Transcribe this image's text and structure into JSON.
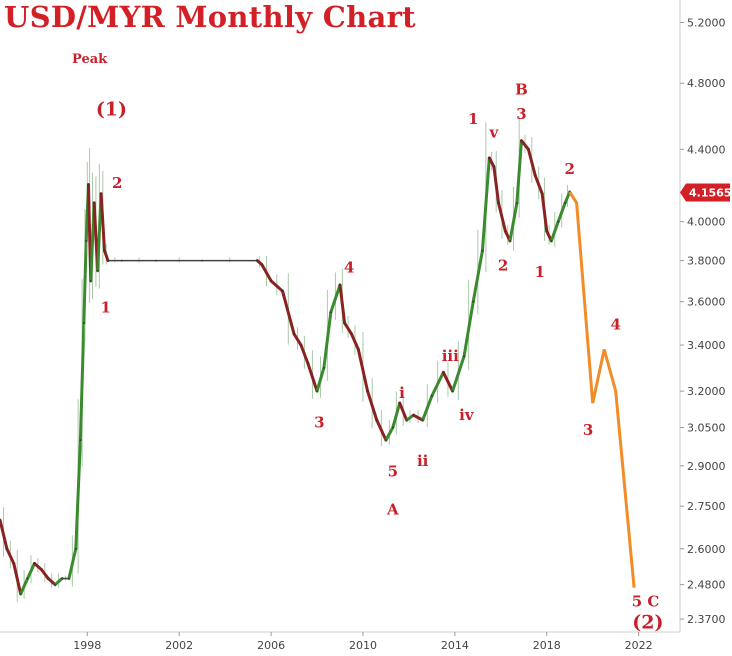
{
  "chart_data": {
    "type": "line",
    "title": "USD/MYR Monthly Chart",
    "y_scale": "log",
    "ylim": [
      2.33,
      5.3
    ],
    "xlim": [
      1994.2,
      2023.8
    ],
    "x_ticks": [
      1998,
      2002,
      2006,
      2010,
      2014,
      2018,
      2022
    ],
    "y_ticks": [
      5.2,
      4.8,
      4.4,
      4.0,
      3.8,
      3.6,
      3.4,
      3.2,
      3.05,
      2.9,
      2.75,
      2.6,
      2.48,
      2.37
    ],
    "y_tick_labels": [
      "5.2000",
      "4.8000",
      "4.4000",
      "4.0000",
      "3.8000",
      "3.6000",
      "3.4000",
      "3.2000",
      "3.0500",
      "2.9000",
      "2.7500",
      "2.6000",
      "2.4800",
      "2.3700"
    ],
    "last_price": 4.1565,
    "last_price_label": "4.1565",
    "series": [
      {
        "kind": "price",
        "x": [
          1994.2,
          1994.5,
          1994.8,
          1995.1,
          1995.4,
          1995.7,
          1996.0,
          1996.3,
          1996.6,
          1996.9,
          1997.2,
          1997.5,
          1997.7,
          1997.85,
          1997.95,
          1998.05,
          1998.15,
          1998.3,
          1998.45,
          1998.6,
          1998.75,
          1998.9,
          1999.5,
          2001,
          2003,
          2005.4,
          2005.6,
          2006.0,
          2006.5,
          2007.0,
          2007.3,
          2007.6,
          2008.0,
          2008.3,
          2008.6,
          2009.0,
          2009.2,
          2009.5,
          2009.8,
          2010.2,
          2010.6,
          2011.0,
          2011.3,
          2011.6,
          2011.9,
          2012.2,
          2012.6,
          2013.0,
          2013.5,
          2013.9,
          2014.4,
          2014.8,
          2015.2,
          2015.5,
          2015.7,
          2015.9,
          2016.2,
          2016.4,
          2016.7,
          2016.9,
          2017.2,
          2017.5,
          2017.8,
          2018.0,
          2018.2,
          2018.5,
          2018.8,
          2019.0
        ],
        "y": [
          2.7,
          2.6,
          2.55,
          2.45,
          2.5,
          2.55,
          2.53,
          2.5,
          2.48,
          2.5,
          2.5,
          2.6,
          3.0,
          3.5,
          3.9,
          4.2,
          3.7,
          4.1,
          3.75,
          4.15,
          3.85,
          3.8,
          3.8,
          3.8,
          3.8,
          3.8,
          3.78,
          3.7,
          3.65,
          3.45,
          3.4,
          3.32,
          3.2,
          3.3,
          3.55,
          3.68,
          3.5,
          3.45,
          3.38,
          3.2,
          3.08,
          3.0,
          3.05,
          3.15,
          3.08,
          3.1,
          3.08,
          3.18,
          3.28,
          3.2,
          3.35,
          3.6,
          3.85,
          4.35,
          4.3,
          4.1,
          3.95,
          3.9,
          4.1,
          4.45,
          4.4,
          4.25,
          4.15,
          3.95,
          3.9,
          4.0,
          4.1,
          4.16
        ]
      },
      {
        "kind": "projection",
        "x": [
          2019.0,
          2019.3,
          2020.0,
          2020.5,
          2021.0,
          2021.8
        ],
        "y": [
          4.16,
          4.1,
          3.15,
          3.38,
          3.2,
          2.47
        ]
      }
    ],
    "annotations": [
      {
        "text": "Peak",
        "x": 1998.1,
        "y": 4.93,
        "size": "small"
      },
      {
        "text": "(1)",
        "x": 1999.05,
        "y": 4.6,
        "size": "big"
      },
      {
        "text": "2",
        "x": 1999.3,
        "y": 4.18,
        "size": "normal"
      },
      {
        "text": "1",
        "x": 1998.8,
        "y": 3.55,
        "size": "normal"
      },
      {
        "text": "4",
        "x": 2009.4,
        "y": 3.74,
        "size": "normal"
      },
      {
        "text": "3",
        "x": 2008.1,
        "y": 3.05,
        "size": "normal"
      },
      {
        "text": "i",
        "x": 2011.7,
        "y": 3.17,
        "size": "normal"
      },
      {
        "text": "5",
        "x": 2011.3,
        "y": 2.86,
        "size": "normal"
      },
      {
        "text": "A",
        "x": 2011.3,
        "y": 2.72,
        "size": "normal"
      },
      {
        "text": "ii",
        "x": 2012.6,
        "y": 2.9,
        "size": "normal"
      },
      {
        "text": "iii",
        "x": 2013.8,
        "y": 3.33,
        "size": "normal"
      },
      {
        "text": "iv",
        "x": 2014.5,
        "y": 3.08,
        "size": "normal"
      },
      {
        "text": "1",
        "x": 2014.8,
        "y": 4.55,
        "size": "normal"
      },
      {
        "text": "v",
        "x": 2015.7,
        "y": 4.47,
        "size": "normal"
      },
      {
        "text": "B",
        "x": 2016.9,
        "y": 4.73,
        "size": "normal"
      },
      {
        "text": "3",
        "x": 2016.9,
        "y": 4.58,
        "size": "normal"
      },
      {
        "text": "2",
        "x": 2016.1,
        "y": 3.75,
        "size": "normal"
      },
      {
        "text": "1",
        "x": 2017.7,
        "y": 3.72,
        "size": "normal"
      },
      {
        "text": "2",
        "x": 2019.0,
        "y": 4.26,
        "size": "normal"
      },
      {
        "text": "4",
        "x": 2021.0,
        "y": 3.47,
        "size": "normal"
      },
      {
        "text": "3",
        "x": 2019.8,
        "y": 3.02,
        "size": "normal"
      },
      {
        "text": "5 C",
        "x": 2022.3,
        "y": 2.41,
        "size": "normal"
      },
      {
        "text": "(2)",
        "x": 2022.4,
        "y": 2.34,
        "size": "big"
      }
    ],
    "grid": false,
    "colors": {
      "up": "#3a8a2e",
      "down": "#8b2222",
      "flat": "#444444",
      "wick": "#aac9a8",
      "projection": "#f28c28",
      "label": "#c8202a",
      "price_tag": "#d32027"
    }
  }
}
